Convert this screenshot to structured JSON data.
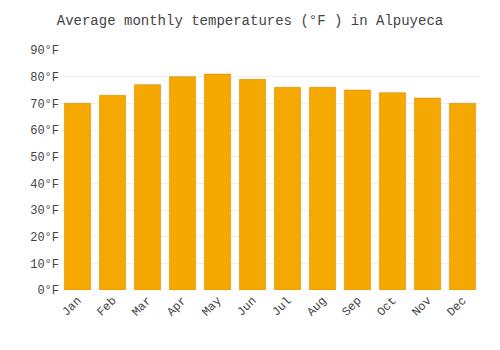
{
  "chart_data": {
    "type": "bar",
    "title": "Average monthly temperatures (°F ) in Alpuyeca",
    "categories": [
      "Jan",
      "Feb",
      "Mar",
      "Apr",
      "May",
      "Jun",
      "Jul",
      "Aug",
      "Sep",
      "Oct",
      "Nov",
      "Dec"
    ],
    "values": [
      70,
      73,
      77,
      80,
      81,
      79,
      76,
      76,
      75,
      74,
      72,
      70
    ],
    "color": "#F5A800",
    "ylim": [
      0,
      90
    ],
    "yticks": [
      {
        "value": 0,
        "label": "0°F"
      },
      {
        "value": 10,
        "label": "10°F"
      },
      {
        "value": 20,
        "label": "20°F"
      },
      {
        "value": 30,
        "label": "30°F"
      },
      {
        "value": 40,
        "label": "40°F"
      },
      {
        "value": 50,
        "label": "50°F"
      },
      {
        "value": 60,
        "label": "60°F"
      },
      {
        "value": 70,
        "label": "70°F"
      },
      {
        "value": 80,
        "label": "80°F"
      },
      {
        "value": 90,
        "label": "90°F"
      }
    ],
    "grid": true
  }
}
